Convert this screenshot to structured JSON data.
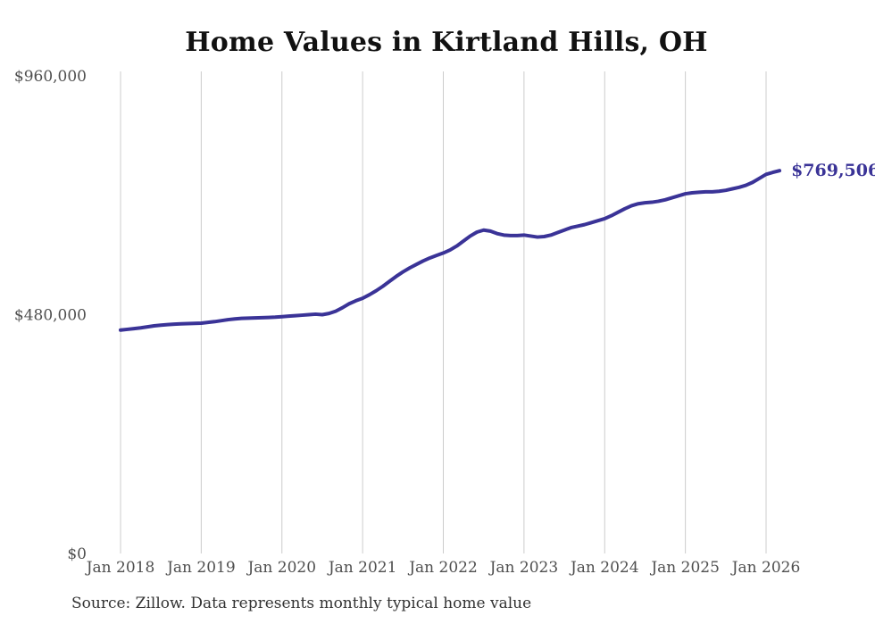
{
  "title": "Home Values in Kirtland Hills, OH",
  "source_note": "Source: Zillow. Data represents monthly typical home value",
  "end_value_label": "$769,506",
  "colors": {
    "line": "#3a3397",
    "end_label": "#3a3397",
    "grid": "#cccccc",
    "axis_text": "#4f4f4f",
    "title_text": "#111111",
    "source_text": "#333333",
    "background": "#ffffff"
  },
  "y_axis": {
    "ticks": [
      {
        "label": "$0",
        "value": 0
      },
      {
        "label": "$480,000",
        "value": 480000
      },
      {
        "label": "$960,000",
        "value": 960000
      }
    ],
    "min": 0,
    "max": 960000
  },
  "x_axis": {
    "ticks": [
      "Jan 2018",
      "Jan 2019",
      "Jan 2020",
      "Jan 2021",
      "Jan 2022",
      "Jan 2023",
      "Jan 2024",
      "Jan 2025",
      "Jan 2026"
    ]
  },
  "chart_data": {
    "type": "line",
    "title": "Home Values in Kirtland Hills, OH",
    "series_name": "Typical home value",
    "final_value": 769506,
    "ylim": [
      0,
      960000
    ],
    "grid": "vertical-only",
    "x": [
      "2018-01",
      "2018-02",
      "2018-03",
      "2018-04",
      "2018-05",
      "2018-06",
      "2018-07",
      "2018-08",
      "2018-09",
      "2018-10",
      "2018-11",
      "2018-12",
      "2019-01",
      "2019-02",
      "2019-03",
      "2019-04",
      "2019-05",
      "2019-06",
      "2019-07",
      "2019-08",
      "2019-09",
      "2019-10",
      "2019-11",
      "2019-12",
      "2020-01",
      "2020-02",
      "2020-03",
      "2020-04",
      "2020-05",
      "2020-06",
      "2020-07",
      "2020-08",
      "2020-09",
      "2020-10",
      "2020-11",
      "2020-12",
      "2021-01",
      "2021-02",
      "2021-03",
      "2021-04",
      "2021-05",
      "2021-06",
      "2021-07",
      "2021-08",
      "2021-09",
      "2021-10",
      "2021-11",
      "2021-12",
      "2022-01",
      "2022-02",
      "2022-03",
      "2022-04",
      "2022-05",
      "2022-06",
      "2022-07",
      "2022-08",
      "2022-09",
      "2022-10",
      "2022-11",
      "2022-12",
      "2023-01",
      "2023-02",
      "2023-03",
      "2023-04",
      "2023-05",
      "2023-06",
      "2023-07",
      "2023-08",
      "2023-09",
      "2023-10",
      "2023-11",
      "2023-12",
      "2024-01",
      "2024-02",
      "2024-03",
      "2024-04",
      "2024-05",
      "2024-06",
      "2024-07",
      "2024-08",
      "2024-09",
      "2024-10",
      "2024-11",
      "2024-12",
      "2025-01",
      "2025-02",
      "2025-03",
      "2025-04",
      "2025-05",
      "2025-06",
      "2025-07",
      "2025-08",
      "2025-09",
      "2025-10",
      "2025-11",
      "2025-12",
      "2026-01",
      "2026-02",
      "2026-03"
    ],
    "values": [
      449000,
      450500,
      452000,
      453500,
      455500,
      457500,
      459000,
      460000,
      461000,
      461500,
      462000,
      462500,
      463000,
      464500,
      466000,
      468000,
      470000,
      471500,
      472500,
      473000,
      473500,
      474000,
      474500,
      475000,
      476000,
      477000,
      478000,
      479000,
      480000,
      481000,
      480000,
      482500,
      487000,
      494000,
      502000,
      508000,
      513000,
      520000,
      528000,
      537000,
      547000,
      557000,
      566000,
      574000,
      581000,
      588000,
      594000,
      599000,
      604000,
      610000,
      618000,
      628000,
      638000,
      646000,
      650000,
      648000,
      643000,
      640000,
      639000,
      639000,
      640000,
      638000,
      636000,
      637000,
      640000,
      645000,
      650000,
      655000,
      658000,
      661000,
      665000,
      669000,
      673000,
      679000,
      686000,
      693000,
      699000,
      703000,
      705000,
      706000,
      708000,
      711000,
      715000,
      719000,
      723000,
      725000,
      726000,
      727000,
      727000,
      728000,
      730000,
      733000,
      736000,
      740000,
      746000,
      754000,
      762000,
      766000,
      769506
    ]
  }
}
